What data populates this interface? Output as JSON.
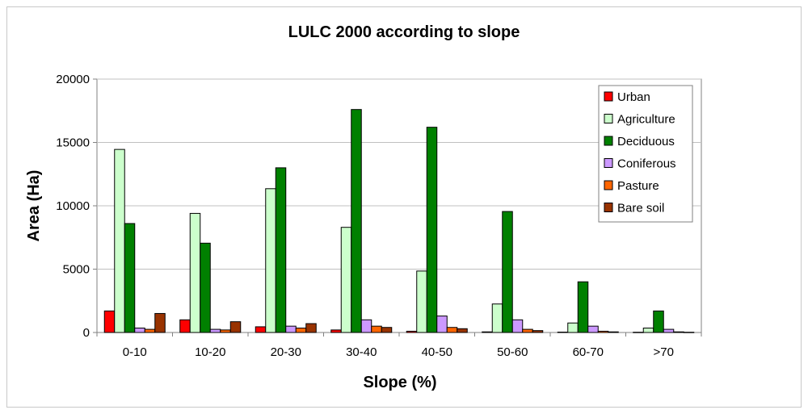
{
  "chart_data": {
    "type": "bar",
    "title": "LULC 2000 according to slope",
    "xlabel": "Slope (%)",
    "ylabel": "Area (Ha)",
    "ylim": [
      0,
      20000
    ],
    "yticks": [
      "0",
      "5000",
      "10000",
      "15000",
      "20000"
    ],
    "categories": [
      "0-10",
      "10-20",
      "20-30",
      "30-40",
      "40-50",
      "50-60",
      "60-70",
      ">70"
    ],
    "grid": true,
    "legend_position": "top-right",
    "series": [
      {
        "name": "Urban",
        "color": "#ff0000",
        "values": [
          1700,
          1000,
          450,
          200,
          100,
          50,
          30,
          20
        ]
      },
      {
        "name": "Agriculture",
        "color": "#ccffcc",
        "values": [
          14450,
          9400,
          11350,
          8300,
          4850,
          2250,
          750,
          350
        ]
      },
      {
        "name": "Deciduous",
        "color": "#008000",
        "values": [
          8600,
          7050,
          13000,
          17600,
          16200,
          9550,
          4000,
          1700
        ]
      },
      {
        "name": "Coniferous",
        "color": "#cc99ff",
        "values": [
          350,
          250,
          500,
          1000,
          1300,
          1000,
          500,
          250
        ]
      },
      {
        "name": "Pasture",
        "color": "#ff6600",
        "values": [
          250,
          200,
          350,
          500,
          400,
          250,
          100,
          50
        ]
      },
      {
        "name": "Bare soil",
        "color": "#993300",
        "values": [
          1500,
          850,
          700,
          400,
          300,
          150,
          50,
          20
        ]
      }
    ]
  }
}
